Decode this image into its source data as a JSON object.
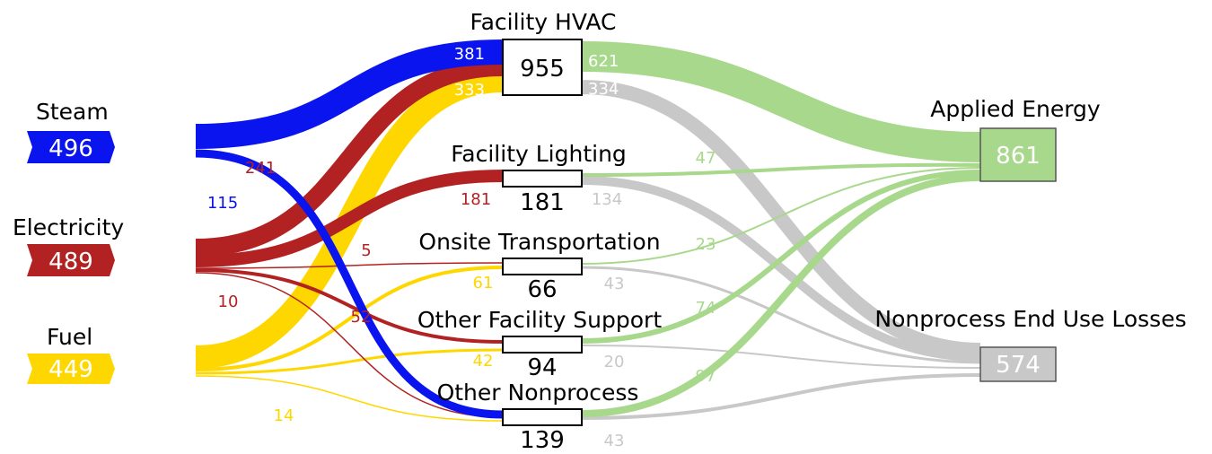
{
  "colors": {
    "steam": "#0a14ee",
    "electricity": "#b22222",
    "fuel": "#ffd700",
    "applied": "#a8d88c",
    "losses": "#c8c8c8"
  },
  "sources": {
    "steam": {
      "label": "Steam",
      "value": "496"
    },
    "electricity": {
      "label": "Electricity",
      "value": "489"
    },
    "fuel": {
      "label": "Fuel",
      "value": "449"
    }
  },
  "end_uses": {
    "hvac": {
      "label": "Facility HVAC",
      "value": "955"
    },
    "lighting": {
      "label": "Facility Lighting",
      "value": "181"
    },
    "transport": {
      "label": "Onsite Transportation",
      "value": "66"
    },
    "support": {
      "label": "Other Facility Support",
      "value": "94"
    },
    "nonprocess": {
      "label": "Other Nonprocess",
      "value": "139"
    }
  },
  "sinks": {
    "applied": {
      "label": "Applied Energy",
      "value": "861"
    },
    "losses": {
      "label": "Nonprocess End Use Losses",
      "value": "574"
    }
  },
  "flow_labels": {
    "steam_hvac": "381",
    "elec_hvac": "241",
    "fuel_hvac": "333",
    "steam_nonprocess": "115",
    "elec_lighting": "181",
    "elec_transport": "5",
    "elec_support": "52",
    "elec_nonprocess": "10",
    "fuel_transport": "61",
    "fuel_support": "42",
    "fuel_nonprocess": "14",
    "hvac_applied": "621",
    "hvac_losses": "334",
    "lighting_applied": "47",
    "lighting_losses": "134",
    "transport_applied": "23",
    "transport_losses": "43",
    "support_applied": "74",
    "support_losses": "20",
    "nonprocess_applied": "97",
    "nonprocess_losses": "43"
  }
}
